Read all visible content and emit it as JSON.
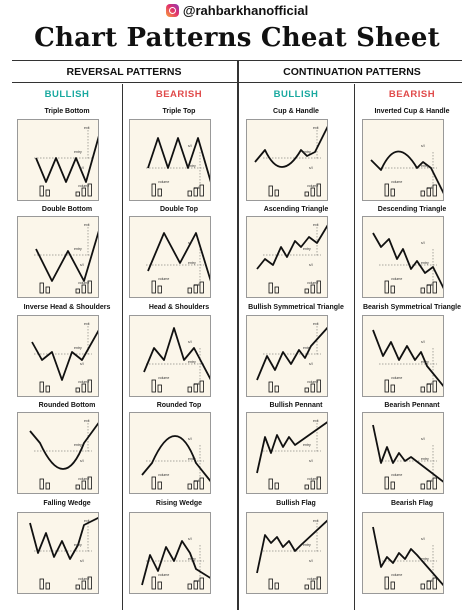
{
  "header": {
    "handle": "@rahbarkhanofficial",
    "title": "Chart Patterns Cheat Sheet"
  },
  "sections": {
    "reversal": "REVERSAL PATTERNS",
    "continuation": "CONTINUATION PATTERNS"
  },
  "columns": [
    {
      "label": "BULLISH"
    },
    {
      "label": "BEARISH"
    },
    {
      "label": "BULLISH"
    },
    {
      "label": "BEARISH"
    }
  ],
  "patterns": [
    [
      "Triple Bottom",
      "Double Bottom",
      "Inverse Head & Shoulders",
      "Rounded Bottom",
      "Falling Wedge"
    ],
    [
      "Triple Top",
      "Double Top",
      "Head & Shoulders",
      "Rounded Top",
      "Rising Wedge"
    ],
    [
      "Cup & Handle",
      "Ascending Triangle",
      "Bullish Symmetrical Triangle",
      "Bullish Pennant",
      "Bullish Flag"
    ],
    [
      "Inverted Cup & Handle",
      "Descending Triangle",
      "Bearish Symmetrical Triangle",
      "Bearish Pennant",
      "Bearish Flag"
    ]
  ],
  "annotations": {
    "entry": "entry",
    "exit": "exit",
    "sl": "s/l",
    "volume": "volume",
    "shoulder": "shoulder",
    "head": "head",
    "neckline": "neckline",
    "cup": "cup",
    "handle": "handle",
    "a": "a",
    "b": "b"
  },
  "colors": {
    "bullish": "#1aa9a0",
    "bearish": "#e04a4a",
    "panel": "#fbf6ea",
    "line": "#111111"
  }
}
